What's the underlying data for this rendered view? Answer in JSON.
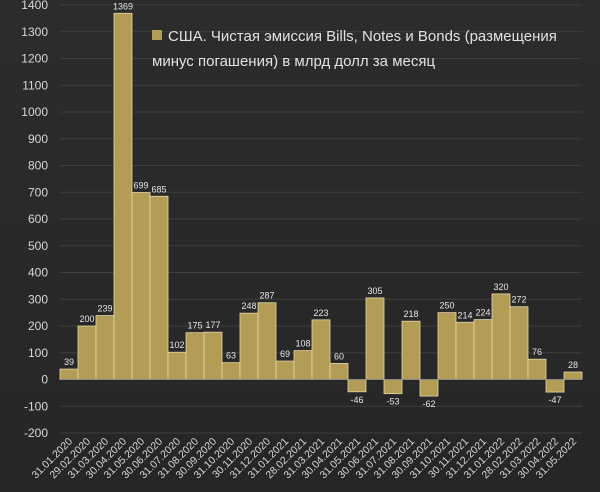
{
  "chart_data": {
    "type": "bar",
    "title": "США. Чистая эмиссия Bills, Notes и Bonds (размещения минус погашения) в млрд долл за месяц",
    "legend": "США. Чистая эмиссия Bills, Notes и Bonds (размещения минус погашения) в млрд долл за месяц",
    "legend_position": "top-right",
    "categories": [
      "31.01.2020",
      "29.02.2020",
      "31.03.2020",
      "30.04.2020",
      "31.05.2020",
      "30.06.2020",
      "31.07.2020",
      "31.08.2020",
      "30.09.2020",
      "31.10.2020",
      "30.11.2020",
      "31.12.2020",
      "31.01.2021",
      "28.02.2021",
      "31.03.2021",
      "30.04.2021",
      "31.05.2021",
      "30.06.2021",
      "31.07.2021",
      "31.08.2021",
      "30.09.2021",
      "31.10.2021",
      "30.11.2021",
      "31.12.2021",
      "31.01.2022",
      "28.02.2022",
      "31.03.2022",
      "30.04.2022",
      "31.05.2022"
    ],
    "values": [
      39,
      200,
      239,
      1369,
      699,
      685,
      102,
      175,
      177,
      63,
      248,
      287,
      69,
      108,
      223,
      60,
      -46,
      305,
      -53,
      218,
      -62,
      250,
      214,
      224,
      320,
      272,
      76,
      -47,
      28
    ],
    "yticks": [
      -200,
      -100,
      0,
      100,
      200,
      300,
      400,
      500,
      600,
      700,
      800,
      900,
      1000,
      1100,
      1200,
      1300,
      1400
    ],
    "ylim": [
      -200,
      1400
    ],
    "xlabel": "",
    "ylabel": "",
    "grid": true,
    "colors": {
      "bar": "#b39c55",
      "bar_edge": "#e4d7a6"
    }
  }
}
